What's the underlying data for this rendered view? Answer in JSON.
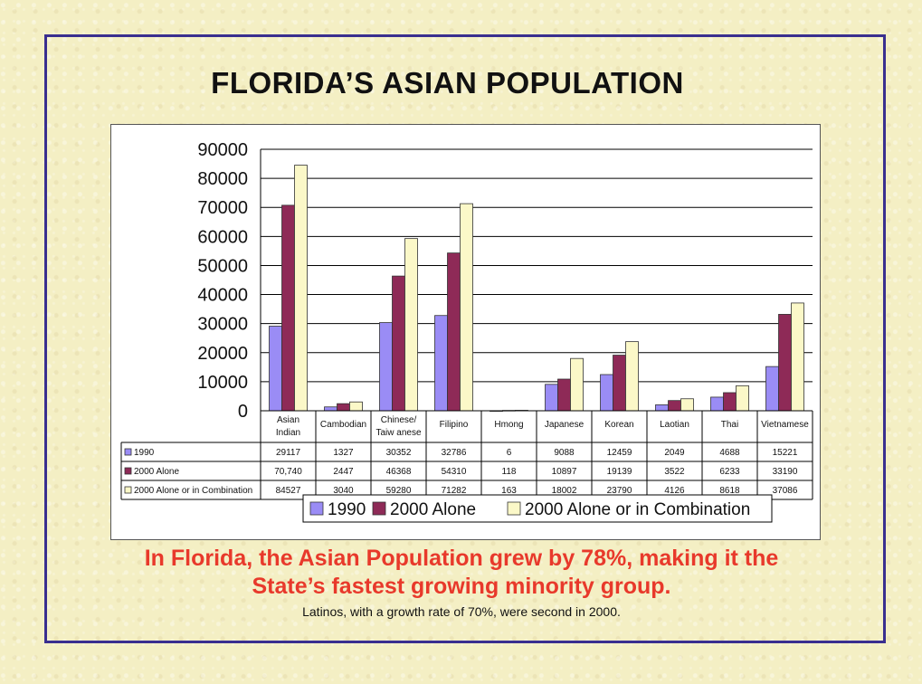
{
  "title": "FLORIDA’S  ASIAN  POPULATION",
  "headline": {
    "line1": "In Florida, the Asian Population grew by 78%, making it the",
    "line2": "State’s fastest growing minority group."
  },
  "note": "Latinos, with a growth rate of 70%, were second in 2000.",
  "chart_data": {
    "type": "bar",
    "title": "",
    "xlabel": "",
    "ylabel": "",
    "ylim": [
      0,
      90000
    ],
    "yticks": [
      "90000",
      "80000",
      "70000",
      "60000",
      "50000",
      "40000",
      "30000",
      "20000",
      "10000",
      "0"
    ],
    "ytick_values": [
      90000,
      80000,
      70000,
      60000,
      50000,
      40000,
      30000,
      20000,
      10000,
      0
    ],
    "grid": true,
    "legend": "bottom",
    "categories": [
      [
        "Asian",
        "Indian"
      ],
      [
        "Cambodian"
      ],
      [
        "Chinese/",
        "Taiw anese"
      ],
      [
        "Filipino"
      ],
      [
        "Hmong"
      ],
      [
        "Japanese"
      ],
      [
        "Korean"
      ],
      [
        "Laotian"
      ],
      [
        "Thai"
      ],
      [
        "Vietnamese"
      ]
    ],
    "series": [
      {
        "name": "1990",
        "color": "#9a8cf5",
        "values": [
          29117,
          1327,
          30352,
          32786,
          6,
          9088,
          12459,
          2049,
          4688,
          15221
        ],
        "labels": [
          "29117",
          "1327",
          "30352",
          "32786",
          "6",
          "9088",
          "12459",
          "2049",
          "4688",
          "15221"
        ]
      },
      {
        "name": "2000 Alone",
        "color": "#8e2a57",
        "values": [
          70740,
          2447,
          46368,
          54310,
          118,
          10897,
          19139,
          3522,
          6233,
          33190
        ],
        "labels": [
          "70,740",
          "2447",
          "46368",
          "54310",
          "118",
          "10897",
          "19139",
          "3522",
          "6233",
          "33190"
        ]
      },
      {
        "name": "2000 Alone or in Combination",
        "color": "#fbf8c8",
        "values": [
          84527,
          3040,
          59280,
          71282,
          163,
          18002,
          23790,
          4126,
          8618,
          37086
        ],
        "labels": [
          "84527",
          "3040",
          "59280",
          "71282",
          "163",
          "18002",
          "23790",
          "4126",
          "8618",
          "37086"
        ]
      }
    ]
  }
}
